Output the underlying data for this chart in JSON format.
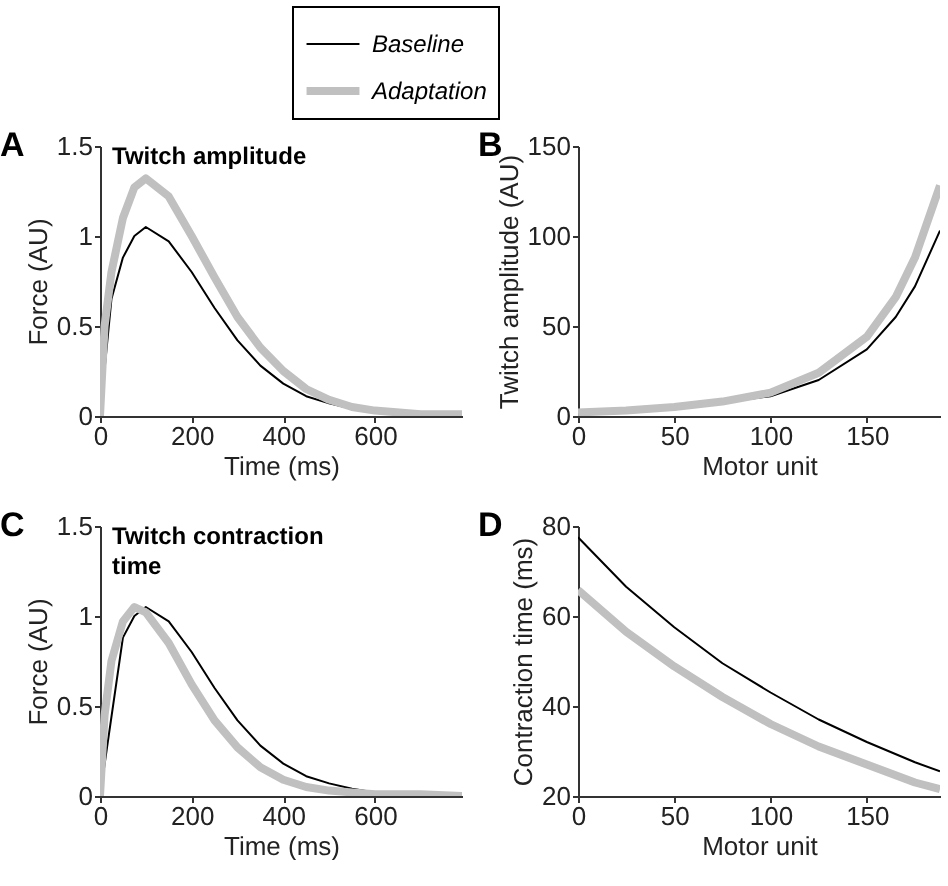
{
  "chart_data": [
    {
      "type": "line",
      "title": "A",
      "annotations": [
        "Twitch amplitude"
      ],
      "xlabel": "Time (ms)",
      "ylabel": "Force (AU)",
      "xlim": [
        0,
        790
      ],
      "xticks": [
        0,
        200,
        400,
        600
      ],
      "ylim": [
        0,
        1.5
      ],
      "yticks": [
        0,
        0.5,
        1,
        1.5
      ],
      "grid": false,
      "legend": "top",
      "x": [
        0,
        10,
        25,
        50,
        75,
        100,
        150,
        200,
        250,
        300,
        350,
        400,
        450,
        500,
        550,
        600,
        700,
        790
      ],
      "series": [
        {
          "name": "Baseline",
          "color": "#000000",
          "x": [
            0,
            25,
            50,
            75,
            100,
            150,
            200,
            250,
            300,
            350,
            400,
            450,
            500,
            550,
            600,
            700,
            790
          ],
          "values": [
            0,
            0.65,
            0.88,
            1.0,
            1.05,
            0.97,
            0.8,
            0.6,
            0.42,
            0.28,
            0.18,
            0.11,
            0.07,
            0.04,
            0.02,
            0.01,
            0
          ]
        },
        {
          "name": "Adaptation",
          "color": "#c0c0c0",
          "values": [
            0,
            0.5,
            0.8,
            1.1,
            1.27,
            1.32,
            1.22,
            1.0,
            0.77,
            0.55,
            0.38,
            0.25,
            0.15,
            0.09,
            0.05,
            0.03,
            0.01,
            0.01
          ]
        }
      ]
    },
    {
      "type": "line",
      "title": "B",
      "xlabel": "Motor unit",
      "ylabel": "Twitch amplitude (AU)",
      "xlim": [
        0,
        188
      ],
      "xticks": [
        0,
        50,
        100,
        150
      ],
      "ylim": [
        0,
        150
      ],
      "yticks": [
        0,
        50,
        100,
        150
      ],
      "grid": false,
      "x": [
        0,
        25,
        50,
        75,
        100,
        125,
        150,
        165,
        175,
        188
      ],
      "series": [
        {
          "color": "#000000",
          "x": [
            0,
            25,
            50,
            100,
            125,
            150,
            165,
            175,
            188
          ],
          "values": [
            1,
            2,
            4,
            11,
            20,
            37,
            55,
            72,
            103
          ]
        },
        {
          "color": "#c0c0c0",
          "values": [
            2,
            3,
            5,
            8,
            13,
            24,
            44,
            66,
            88,
            128
          ]
        }
      ]
    },
    {
      "type": "line",
      "title": "C",
      "annotations": [
        "Twitch contraction time"
      ],
      "xlabel": "Time (ms)",
      "ylabel": "Force (AU)",
      "xlim": [
        0,
        790
      ],
      "xticks": [
        0,
        200,
        400,
        600
      ],
      "ylim": [
        0,
        1.5
      ],
      "yticks": [
        0,
        0.5,
        1,
        1.5
      ],
      "grid": false,
      "x": [
        0,
        10,
        25,
        50,
        75,
        100,
        150,
        200,
        250,
        300,
        350,
        400,
        450,
        500,
        550,
        600,
        700,
        790
      ],
      "series": [
        {
          "color": "#000000",
          "x": [
            0,
            50,
            75,
            100,
            150,
            200,
            250,
            300,
            350,
            400,
            450,
            500,
            550,
            600,
            700,
            790
          ],
          "values": [
            0,
            0.88,
            1.0,
            1.05,
            0.97,
            0.8,
            0.6,
            0.42,
            0.28,
            0.18,
            0.11,
            0.07,
            0.04,
            0.02,
            0.01,
            0
          ]
        },
        {
          "color": "#c0c0c0",
          "values": [
            0,
            0.45,
            0.75,
            0.97,
            1.05,
            1.02,
            0.85,
            0.62,
            0.42,
            0.27,
            0.16,
            0.09,
            0.05,
            0.03,
            0.02,
            0.01,
            0.01,
            0
          ]
        }
      ]
    },
    {
      "type": "line",
      "title": "D",
      "xlabel": "Motor unit",
      "ylabel": "Contraction time (ms)",
      "xlim": [
        0,
        188
      ],
      "xticks": [
        0,
        50,
        100,
        150
      ],
      "ylim": [
        20,
        80
      ],
      "yticks": [
        20,
        40,
        60,
        80
      ],
      "grid": false,
      "x": [
        0,
        25,
        50,
        75,
        100,
        125,
        150,
        175,
        188
      ],
      "series": [
        {
          "color": "#000000",
          "values": [
            77.5,
            66.5,
            57.5,
            49.5,
            43,
            37,
            32,
            27.5,
            25.5
          ]
        },
        {
          "color": "#c0c0c0",
          "values": [
            65.8,
            56.5,
            48.8,
            42,
            36,
            31,
            27,
            23,
            21.5
          ]
        }
      ]
    }
  ]
}
